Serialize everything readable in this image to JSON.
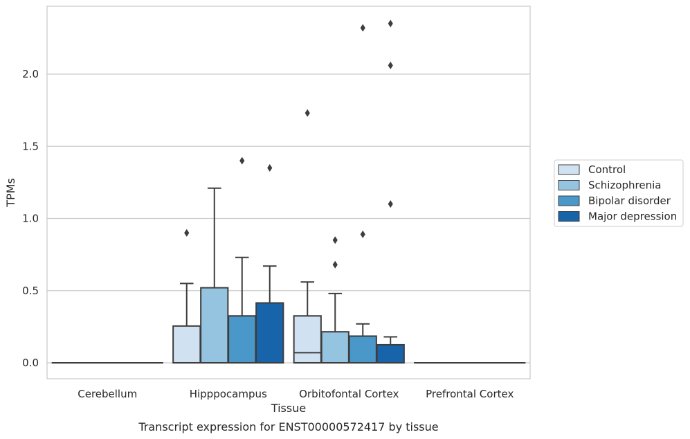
{
  "chart_data": {
    "type": "box",
    "xlabel": "Tissue",
    "ylabel": "TPMs",
    "caption": "Transcript expression for ENST00000572417 by tissue",
    "ylim": [
      -0.115,
      2.465
    ],
    "yticks": [
      "0.0",
      "0.5",
      "1.0",
      "1.5",
      "2.0"
    ],
    "yticks_values": [
      0.0,
      0.5,
      1.0,
      1.5,
      2.0
    ],
    "grid": "horizontal",
    "legend_placement": "right",
    "categories": [
      "Cerebellum",
      "Hipppocampus",
      "Orbitofontal Cortex",
      "Prefrontal Cortex"
    ],
    "series": [
      {
        "name": "Control",
        "color": "#d0e1f2",
        "boxes": [
          {
            "q1": 0,
            "median": 0,
            "q3": 0,
            "whisker_low": 0,
            "whisker_high": 0,
            "outliers": []
          },
          {
            "q1": 0,
            "median": 0,
            "q3": 0.255,
            "whisker_low": 0,
            "whisker_high": 0.55,
            "outliers": [
              0.9
            ]
          },
          {
            "q1": 0,
            "median": 0.07,
            "q3": 0.325,
            "whisker_low": 0,
            "whisker_high": 0.56,
            "outliers": [
              1.73
            ]
          },
          {
            "q1": 0,
            "median": 0,
            "q3": 0,
            "whisker_low": 0,
            "whisker_high": 0,
            "outliers": []
          }
        ]
      },
      {
        "name": "Schizophrenia",
        "color": "#94c4df",
        "boxes": [
          {
            "q1": 0,
            "median": 0,
            "q3": 0,
            "whisker_low": 0,
            "whisker_high": 0,
            "outliers": []
          },
          {
            "q1": 0,
            "median": 0,
            "q3": 0.52,
            "whisker_low": 0,
            "whisker_high": 1.21,
            "outliers": []
          },
          {
            "q1": 0,
            "median": 0,
            "q3": 0.215,
            "whisker_low": 0,
            "whisker_high": 0.48,
            "outliers": [
              0.68,
              0.85
            ]
          },
          {
            "q1": 0,
            "median": 0,
            "q3": 0,
            "whisker_low": 0,
            "whisker_high": 0,
            "outliers": []
          }
        ]
      },
      {
        "name": "Bipolar disorder",
        "color": "#4a98c9",
        "boxes": [
          {
            "q1": 0,
            "median": 0,
            "q3": 0,
            "whisker_low": 0,
            "whisker_high": 0,
            "outliers": []
          },
          {
            "q1": 0,
            "median": 0,
            "q3": 0.325,
            "whisker_low": 0,
            "whisker_high": 0.73,
            "outliers": [
              1.4
            ]
          },
          {
            "q1": 0,
            "median": 0,
            "q3": 0.185,
            "whisker_low": 0,
            "whisker_high": 0.27,
            "outliers": [
              0.89,
              2.32
            ]
          },
          {
            "q1": 0,
            "median": 0,
            "q3": 0,
            "whisker_low": 0,
            "whisker_high": 0,
            "outliers": []
          }
        ]
      },
      {
        "name": "Major depression",
        "color": "#1764ab",
        "boxes": [
          {
            "q1": 0,
            "median": 0,
            "q3": 0,
            "whisker_low": 0,
            "whisker_high": 0,
            "outliers": []
          },
          {
            "q1": 0,
            "median": 0,
            "q3": 0.415,
            "whisker_low": 0,
            "whisker_high": 0.67,
            "outliers": [
              1.35
            ]
          },
          {
            "q1": 0,
            "median": 0,
            "q3": 0.125,
            "whisker_low": 0,
            "whisker_high": 0.18,
            "outliers": [
              1.1,
              2.06,
              2.35
            ]
          },
          {
            "q1": 0,
            "median": 0,
            "q3": 0,
            "whisker_low": 0,
            "whisker_high": 0,
            "outliers": []
          }
        ]
      }
    ]
  }
}
